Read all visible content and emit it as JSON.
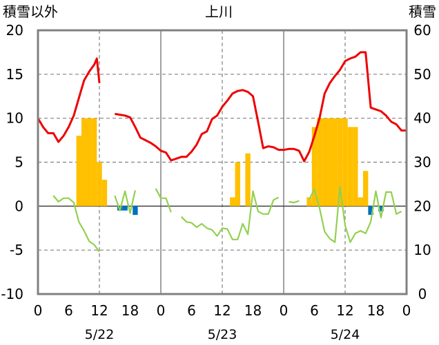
{
  "chart_data": {
    "type": "bar+line",
    "title": "上川",
    "left_axis_label": "積雪以外",
    "right_axis_label": "積雪",
    "left_ylim": [
      -10,
      20
    ],
    "left_yticks": [
      -10,
      -5,
      0,
      5,
      10,
      15,
      20
    ],
    "right_ylim": [
      0,
      60
    ],
    "right_yticks": [
      0,
      10,
      20,
      30,
      40,
      50,
      60
    ],
    "x_hours_range": [
      0,
      72
    ],
    "x_tick_labels": [
      "0",
      "6",
      "12",
      "18",
      "0",
      "6",
      "12",
      "18",
      "0",
      "6",
      "12",
      "18",
      "0"
    ],
    "date_labels": [
      "5/22",
      "5/23",
      "5/24"
    ],
    "grid": true,
    "colors": {
      "red_series": "#ee0000",
      "green_series": "#92d050",
      "orange_bars": "#ffc000",
      "blue_bars": "#0070c0",
      "grid": "#808080",
      "frame": "#808080"
    },
    "series": [
      {
        "axis": "left",
        "type": "line",
        "color": "#ee0000",
        "x": [
          0,
          1,
          2,
          3,
          4,
          5,
          6,
          7,
          8,
          9,
          10,
          11,
          11.5,
          12,
          15,
          16,
          17,
          18,
          19,
          20,
          21,
          22,
          23,
          24,
          25,
          26,
          27,
          28,
          29,
          30,
          31,
          32,
          33,
          34,
          35,
          36,
          37,
          38,
          39,
          40,
          41,
          42,
          43,
          44,
          45,
          46,
          47,
          48,
          49,
          50,
          51,
          52,
          53,
          54,
          55,
          56,
          57,
          58,
          59,
          60,
          61,
          62,
          63,
          64,
          65,
          66,
          67,
          68,
          69,
          70,
          71,
          72
        ],
        "y": [
          10.0,
          9.0,
          8.3,
          8.3,
          7.3,
          8.0,
          9.0,
          10.3,
          12.3,
          14.3,
          15.3,
          16.1,
          16.8,
          14.0,
          10.5,
          10.4,
          10.3,
          10.1,
          9.0,
          7.8,
          7.5,
          7.2,
          6.8,
          6.3,
          6.1,
          5.2,
          5.4,
          5.6,
          5.6,
          6.2,
          7.0,
          8.2,
          8.5,
          9.9,
          10.3,
          11.3,
          12.0,
          12.8,
          13.1,
          13.2,
          13.0,
          12.5,
          9.6,
          6.6,
          6.8,
          6.7,
          6.4,
          6.4,
          6.5,
          6.5,
          6.3,
          5.1,
          6.2,
          8.0,
          10.0,
          12.8,
          14.0,
          14.8,
          15.5,
          16.5,
          16.8,
          17.0,
          17.5,
          17.5,
          11.2,
          11.0,
          10.8,
          10.3,
          9.6,
          9.3,
          8.6,
          8.6
        ],
        "segments": [
          [
            0,
            13
          ],
          [
            14,
            71
          ]
        ]
      },
      {
        "axis": "left",
        "type": "line",
        "color": "#92d050",
        "segments_data": [
          {
            "x": [
              3,
              4,
              5,
              6,
              7,
              8,
              9,
              10,
              11,
              12
            ],
            "y": [
              1.2,
              0.5,
              0.9,
              0.9,
              0.4,
              -1.8,
              -2.8,
              -4.0,
              -4.4,
              -5.2
            ]
          },
          {
            "x": [
              15,
              16,
              17,
              18,
              19
            ],
            "y": [
              1.2,
              -0.5,
              1.7,
              -0.8,
              1.8
            ]
          },
          {
            "x": [
              23,
              24,
              25,
              26
            ],
            "y": [
              2.0,
              0.9,
              0.9,
              -0.7
            ]
          },
          {
            "x": [
              28,
              29,
              30,
              31,
              32,
              33,
              34,
              35,
              36,
              37,
              38,
              39,
              40,
              41,
              42,
              43,
              44,
              45,
              46,
              47
            ],
            "y": [
              -1.2,
              -1.8,
              -1.9,
              -2.4,
              -2.0,
              -2.5,
              -2.7,
              -3.4,
              -2.5,
              -2.6,
              -3.8,
              -3.8,
              -2.0,
              -3.2,
              1.7,
              -0.6,
              -0.9,
              -0.9,
              0.7,
              1.0
            ]
          },
          {
            "x": [
              49,
              50,
              51
            ],
            "y": [
              0.5,
              0.4,
              0.6
            ]
          },
          {
            "x": [
              53,
              54,
              55,
              56,
              57,
              58,
              59,
              60,
              61,
              62,
              63,
              64,
              65,
              66,
              67,
              68,
              69,
              70,
              71
            ],
            "y": [
              0.8,
              1.9,
              -0.2,
              -2.9,
              -3.7,
              -4.1,
              2.2,
              -2.2,
              -4.1,
              -3.1,
              -2.8,
              -3.1,
              -1.8,
              1.7,
              -1.3,
              1.6,
              1.6,
              -0.9,
              -0.6
            ]
          }
        ]
      },
      {
        "axis": "right",
        "type": "bar",
        "color": "#ffc000",
        "x": [
          8,
          9,
          10,
          11,
          12,
          13,
          38,
          39,
          40,
          41,
          42,
          53,
          54,
          55,
          56,
          57,
          58,
          59,
          60,
          61,
          62,
          63,
          64,
          65
        ],
        "values": [
          36,
          40,
          40,
          40,
          30,
          26,
          22,
          30,
          20,
          32,
          20,
          22,
          38,
          40,
          40,
          40,
          40,
          40,
          40,
          38,
          38,
          22,
          28,
          20
        ]
      },
      {
        "axis": "left",
        "type": "bar",
        "color": "#0070c0",
        "x": [
          16,
          17,
          19,
          65,
          67
        ],
        "values": [
          -0.5,
          -0.5,
          -1.0,
          -1.0,
          -0.6
        ]
      }
    ]
  }
}
